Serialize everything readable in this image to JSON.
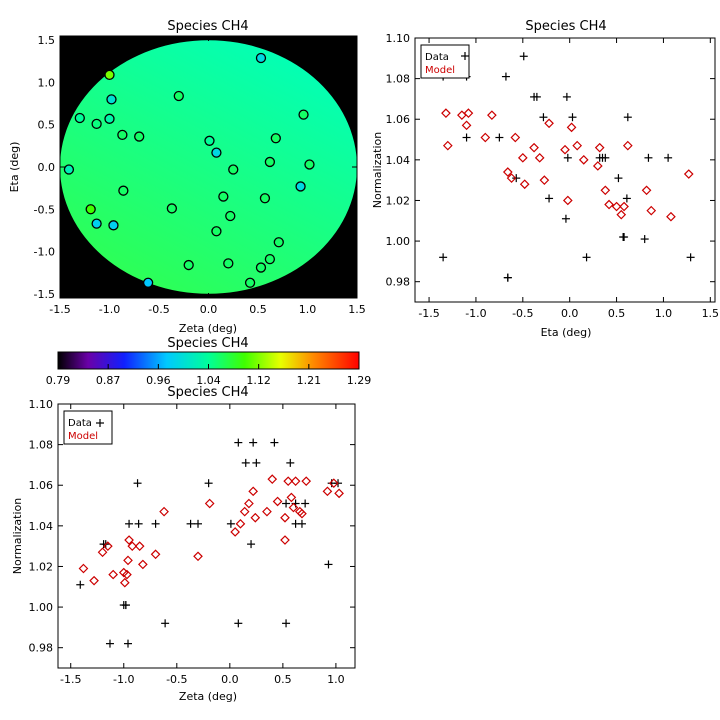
{
  "chart_data": [
    {
      "id": "map",
      "type": "scatter",
      "title": "Species CH4",
      "xlabel": "Zeta (deg)",
      "ylabel": "Eta (deg)",
      "xlim": [
        -1.5,
        1.5
      ],
      "ylim": [
        -1.55,
        1.55
      ],
      "xticks": [
        -1.5,
        -1.0,
        -0.5,
        0.0,
        0.5,
        1.0,
        1.5
      ],
      "yticks": [
        -1.5,
        -1.0,
        -0.5,
        0.0,
        0.5,
        1.0,
        1.5
      ],
      "x_tick_labels": [
        "-1.5",
        "-1.0",
        "-0.5",
        "0.0",
        "0.5",
        "1.0",
        "1.5"
      ],
      "y_tick_labels": [
        "-1.5",
        "-1.0",
        "-0.5",
        "0.0",
        "0.5",
        "1.0",
        "1.5"
      ],
      "field_radius_deg": 1.5,
      "background_color": "#000000",
      "points": [
        {
          "zeta": 0.53,
          "eta": 1.29,
          "value": 0.99
        },
        {
          "zeta": -1.0,
          "eta": 1.09,
          "value": 1.12
        },
        {
          "zeta": -0.3,
          "eta": 0.84,
          "value": 1.06
        },
        {
          "zeta": -0.98,
          "eta": 0.8,
          "value": 1.0
        },
        {
          "zeta": -1.3,
          "eta": 0.58,
          "value": 1.04
        },
        {
          "zeta": -1.13,
          "eta": 0.51,
          "value": 1.05
        },
        {
          "zeta": -1.0,
          "eta": 0.57,
          "value": 1.03
        },
        {
          "zeta": 0.96,
          "eta": 0.62,
          "value": 1.06
        },
        {
          "zeta": -0.87,
          "eta": 0.38,
          "value": 1.06
        },
        {
          "zeta": -0.7,
          "eta": 0.36,
          "value": 1.06
        },
        {
          "zeta": 0.01,
          "eta": 0.31,
          "value": 1.04
        },
        {
          "zeta": 0.68,
          "eta": 0.34,
          "value": 1.06
        },
        {
          "zeta": 0.08,
          "eta": 0.17,
          "value": 0.99
        },
        {
          "zeta": 0.62,
          "eta": 0.06,
          "value": 1.06
        },
        {
          "zeta": 1.02,
          "eta": 0.03,
          "value": 1.06
        },
        {
          "zeta": -1.41,
          "eta": -0.03,
          "value": 1.02
        },
        {
          "zeta": 0.25,
          "eta": -0.03,
          "value": 1.06
        },
        {
          "zeta": 0.93,
          "eta": -0.23,
          "value": 0.99
        },
        {
          "zeta": -0.86,
          "eta": -0.28,
          "value": 1.06
        },
        {
          "zeta": 0.15,
          "eta": -0.35,
          "value": 1.06
        },
        {
          "zeta": 0.57,
          "eta": -0.37,
          "value": 1.06
        },
        {
          "zeta": -1.19,
          "eta": -0.5,
          "value": 1.1
        },
        {
          "zeta": -0.37,
          "eta": -0.49,
          "value": 1.06
        },
        {
          "zeta": 0.22,
          "eta": -0.58,
          "value": 1.06
        },
        {
          "zeta": -1.13,
          "eta": -0.67,
          "value": 0.98
        },
        {
          "zeta": -0.96,
          "eta": -0.69,
          "value": 0.98
        },
        {
          "zeta": 0.08,
          "eta": -0.76,
          "value": 1.06
        },
        {
          "zeta": 0.71,
          "eta": -0.89,
          "value": 1.06
        },
        {
          "zeta": 0.62,
          "eta": -1.09,
          "value": 1.06
        },
        {
          "zeta": -0.2,
          "eta": -1.16,
          "value": 1.06
        },
        {
          "zeta": 0.2,
          "eta": -1.14,
          "value": 1.06
        },
        {
          "zeta": 0.53,
          "eta": -1.19,
          "value": 1.06
        },
        {
          "zeta": -0.61,
          "eta": -1.37,
          "value": 0.97
        },
        {
          "zeta": 0.42,
          "eta": -1.37,
          "value": 1.06
        }
      ]
    },
    {
      "id": "eta",
      "type": "scatter",
      "title": "Species CH4",
      "xlabel": "Eta (deg)",
      "ylabel": "Normalization",
      "xlim": [
        -1.65,
        1.55
      ],
      "ylim": [
        0.97,
        1.1
      ],
      "xticks": [
        -1.5,
        -1.0,
        -0.5,
        0.0,
        0.5,
        1.0,
        1.5
      ],
      "yticks": [
        0.98,
        1.0,
        1.02,
        1.04,
        1.06,
        1.08,
        1.1
      ],
      "x_tick_labels": [
        "-1.5",
        "-1.0",
        "-0.5",
        "0.0",
        "0.5",
        "1.0",
        "1.5"
      ],
      "y_tick_labels": [
        "0.98",
        "1.00",
        "1.02",
        "1.04",
        "1.06",
        "1.08",
        "1.10"
      ],
      "legend_position": "top-left",
      "series": [
        {
          "name": "Data",
          "marker": "plus",
          "color": "#000000",
          "x": [
            -1.35,
            -1.14,
            -1.1,
            -1.1,
            -0.75,
            -0.68,
            -0.66,
            -0.57,
            -0.49,
            -0.38,
            -0.35,
            -0.28,
            -0.22,
            -0.04,
            -0.03,
            -0.02,
            0.03,
            0.18,
            0.32,
            0.35,
            0.38,
            0.52,
            0.57,
            0.58,
            0.62,
            0.8,
            0.84,
            1.05,
            1.29,
            0.61,
            -1.35,
            -0.66
          ],
          "y": [
            0.992,
            1.091,
            1.081,
            1.051,
            1.051,
            1.081,
            0.982,
            1.031,
            1.091,
            1.071,
            1.071,
            1.061,
            1.021,
            1.011,
            1.071,
            1.041,
            1.061,
            0.992,
            1.041,
            1.041,
            1.041,
            1.031,
            1.002,
            1.002,
            1.061,
            1.001,
            1.041,
            1.041,
            0.992,
            1.021,
            1.081,
            0.982
          ]
        },
        {
          "name": "Model",
          "marker": "diamond",
          "color": "#cc0000",
          "x": [
            -1.32,
            -1.3,
            -1.15,
            -1.1,
            -1.08,
            -0.83,
            -0.66,
            -0.62,
            -0.58,
            -0.5,
            -0.48,
            -0.38,
            -0.32,
            -0.27,
            -0.22,
            -0.05,
            -0.02,
            0.02,
            0.08,
            0.15,
            0.3,
            0.32,
            0.38,
            0.42,
            0.5,
            0.55,
            0.58,
            0.62,
            0.82,
            0.87,
            1.08,
            1.27,
            -0.9
          ],
          "y": [
            1.063,
            1.047,
            1.062,
            1.057,
            1.063,
            1.062,
            1.034,
            1.031,
            1.051,
            1.041,
            1.028,
            1.046,
            1.041,
            1.03,
            1.058,
            1.045,
            1.02,
            1.056,
            1.047,
            1.04,
            1.037,
            1.046,
            1.025,
            1.018,
            1.017,
            1.013,
            1.017,
            1.047,
            1.025,
            1.015,
            1.012,
            1.033,
            1.051
          ]
        }
      ]
    },
    {
      "id": "colorbar",
      "type": "heatmap",
      "title": "Species CH4",
      "colormap": "rainbow",
      "range": [
        0.79,
        1.29
      ],
      "tick_labels": [
        "0.79",
        "0.87",
        "0.96",
        "1.04",
        "1.12",
        "1.21",
        "1.29"
      ]
    },
    {
      "id": "zeta",
      "type": "scatter",
      "title": "Species CH4",
      "xlabel": "Zeta (deg)",
      "ylabel": "Normalization",
      "xlim": [
        -1.62,
        1.18
      ],
      "ylim": [
        0.97,
        1.1
      ],
      "xticks": [
        -1.5,
        -1.0,
        -0.5,
        0.0,
        0.5,
        1.0
      ],
      "yticks": [
        0.98,
        1.0,
        1.02,
        1.04,
        1.06,
        1.08,
        1.1
      ],
      "x_tick_labels": [
        "-1.5",
        "-1.0",
        "-0.5",
        "0.0",
        "0.5",
        "1.0"
      ],
      "y_tick_labels": [
        "0.98",
        "1.00",
        "1.02",
        "1.04",
        "1.06",
        "1.08",
        "1.10"
      ],
      "legend_position": "top-left",
      "series": [
        {
          "name": "Data",
          "marker": "plus",
          "color": "#000000",
          "x": [
            -1.41,
            -1.3,
            -1.19,
            -1.13,
            -1.0,
            -0.98,
            -0.96,
            -0.95,
            -0.86,
            -0.87,
            -0.7,
            -0.61,
            -0.37,
            -0.3,
            -0.2,
            0.01,
            0.08,
            0.08,
            0.15,
            0.2,
            0.22,
            0.25,
            0.42,
            0.53,
            0.53,
            0.57,
            0.62,
            0.62,
            0.68,
            0.71,
            0.93,
            0.96,
            1.02,
            -0.98,
            -1.17
          ],
          "y": [
            1.011,
            1.091,
            1.031,
            0.982,
            1.001,
            1.001,
            0.982,
            1.041,
            1.041,
            1.061,
            1.041,
            0.992,
            1.041,
            1.041,
            1.061,
            1.041,
            1.081,
            0.992,
            1.071,
            1.031,
            1.081,
            1.071,
            1.081,
            0.992,
            1.051,
            1.071,
            1.051,
            1.041,
            1.041,
            1.051,
            1.021,
            1.061,
            1.061,
            1.001,
            1.031
          ]
        },
        {
          "name": "Model",
          "marker": "diamond",
          "color": "#cc0000",
          "x": [
            -1.38,
            -1.28,
            -1.2,
            -1.15,
            -1.1,
            -1.0,
            -0.99,
            -0.97,
            -0.96,
            -0.95,
            -0.85,
            -0.82,
            -0.7,
            -0.62,
            -0.3,
            -0.19,
            0.05,
            0.1,
            0.14,
            0.18,
            0.22,
            0.24,
            0.4,
            0.45,
            0.52,
            0.55,
            0.58,
            0.62,
            0.68,
            0.72,
            0.92,
            0.98,
            1.03
          ],
          "y": [
            1.019,
            1.013,
            1.027,
            1.03,
            1.016,
            1.017,
            1.012,
            1.016,
            1.023,
            1.033,
            1.03,
            1.021,
            1.026,
            1.047,
            1.025,
            1.051,
            1.037,
            1.041,
            1.047,
            1.051,
            1.057,
            1.044,
            1.063,
            1.052,
            1.033,
            1.062,
            1.054,
            1.062,
            1.046,
            1.062,
            1.057,
            1.061,
            1.056
          ]
        },
        {
          "name": "",
          "marker": "diamond",
          "color": "#cc0000",
          "x": [
            -0.92,
            0.35,
            0.52,
            0.6,
            0.66
          ],
          "y": [
            1.03,
            1.047,
            1.044,
            1.049,
            1.047
          ]
        }
      ]
    }
  ]
}
